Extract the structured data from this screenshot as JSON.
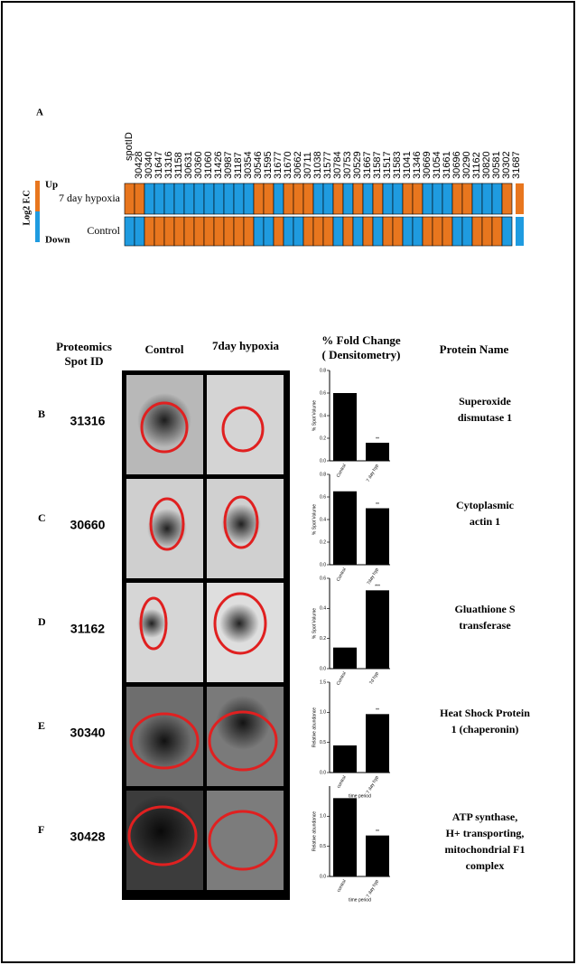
{
  "panel_a": {
    "label": "A",
    "spot_header": "spotID",
    "spot_ids": [
      "30428",
      "30340",
      "31647",
      "31316",
      "31158",
      "30631",
      "30360",
      "31060",
      "31426",
      "30987",
      "31187",
      "30354",
      "30546",
      "31595",
      "31677",
      "31670",
      "30662",
      "30711",
      "31038",
      "31577",
      "30784",
      "30753",
      "30529",
      "31667",
      "31587",
      "31517",
      "31583",
      "31041",
      "31346",
      "30669",
      "31054",
      "31661",
      "30696",
      "30290",
      "31162",
      "30820",
      "30581",
      "30302",
      "31687"
    ],
    "scale_label": "Log2 F.C",
    "levels": [
      {
        "label": "Up",
        "color": "#e8761e"
      },
      {
        "label": "Down",
        "color": "#1f9be0"
      }
    ],
    "rows": [
      {
        "label": "7 day hypoxia",
        "cells": [
          "#e8761e",
          "#e8761e",
          "#1f9be0",
          "#1f9be0",
          "#1f9be0",
          "#1f9be0",
          "#1f9be0",
          "#1f9be0",
          "#1f9be0",
          "#1f9be0",
          "#1f9be0",
          "#1f9be0",
          "#1f9be0",
          "#e8761e",
          "#e8761e",
          "#1f9be0",
          "#e8761e",
          "#e8761e",
          "#e8761e",
          "#1f9be0",
          "#1f9be0",
          "#e8761e",
          "#1f9be0",
          "#e8761e",
          "#1f9be0",
          "#e8761e",
          "#1f9be0",
          "#1f9be0",
          "#e8761e",
          "#e8761e",
          "#1f9be0",
          "#1f9be0",
          "#1f9be0",
          "#e8761e",
          "#e8761e",
          "#1f9be0",
          "#1f9be0",
          "#1f9be0",
          "#e8761e"
        ]
      },
      {
        "label": "Control",
        "cells": [
          "#1f9be0",
          "#1f9be0",
          "#e8761e",
          "#e8761e",
          "#e8761e",
          "#e8761e",
          "#e8761e",
          "#e8761e",
          "#e8761e",
          "#e8761e",
          "#e8761e",
          "#e8761e",
          "#e8761e",
          "#1f9be0",
          "#1f9be0",
          "#e8761e",
          "#1f9be0",
          "#1f9be0",
          "#e8761e",
          "#e8761e",
          "#e8761e",
          "#1f9be0",
          "#e8761e",
          "#1f9be0",
          "#e8761e",
          "#1f9be0",
          "#e8761e",
          "#e8761e",
          "#1f9be0",
          "#1f9be0",
          "#e8761e",
          "#e8761e",
          "#e8761e",
          "#1f9be0",
          "#1f9be0",
          "#e8761e",
          "#e8761e",
          "#e8761e",
          "#1f9be0"
        ]
      }
    ]
  },
  "table": {
    "headers": [
      [
        "Proteomics",
        "Spot ID"
      ],
      [
        "Control"
      ],
      [
        "7day hypoxia"
      ],
      [
        "% Fold Change",
        "( Densitometry)"
      ],
      [
        "Protein  Name"
      ]
    ],
    "rows": [
      {
        "label": "B",
        "spot_id": "31316",
        "protein": [
          "Superoxide",
          "dismutase 1"
        ]
      },
      {
        "label": "C",
        "spot_id": "30660",
        "protein": [
          "Cytoplasmic",
          "actin 1"
        ]
      },
      {
        "label": "D",
        "spot_id": "31162",
        "protein": [
          "Gluathione S",
          "transferase"
        ]
      },
      {
        "label": "E",
        "spot_id": "30340",
        "protein": [
          "Heat Shock Protein",
          "1 (chaperonin)"
        ]
      },
      {
        "label": "F",
        "spot_id": "30428",
        "protein": [
          "ATP synthase,",
          "H+ transporting,",
          "mitochondrial F1",
          "complex"
        ]
      }
    ]
  },
  "chart_data": [
    {
      "type": "bar",
      "ylabel": "% Spot Volume",
      "categories": [
        "Control",
        "7 day hyp"
      ],
      "values": [
        0.6,
        0.16
      ],
      "significance": [
        null,
        "**"
      ],
      "color": "#000000",
      "ylim": [
        0,
        0.8
      ],
      "yticks": [
        {
          "value": 0,
          "label": "0.0"
        },
        0.2,
        0.4,
        0.6,
        0.8
      ]
    },
    {
      "type": "bar",
      "ylabel": "% Spot Volume",
      "categories": [
        "Control",
        "7day hyp"
      ],
      "values": [
        0.65,
        0.5
      ],
      "significance": [
        null,
        "**"
      ],
      "color": "#000000",
      "ylim": [
        0,
        0.8
      ],
      "yticks": [
        {
          "value": 0,
          "label": "0.0"
        },
        0.2,
        0.4,
        0.6,
        0.8
      ]
    },
    {
      "type": "bar",
      "ylabel": "% Spot Volume",
      "categories": [
        "Control",
        "7d hyp"
      ],
      "values": [
        0.14,
        0.52
      ],
      "significance": [
        null,
        "***"
      ],
      "color": "#000000",
      "ylim": [
        0,
        0.6
      ],
      "yticks": [
        {
          "value": 0,
          "label": "0.0"
        },
        0.2,
        0.4,
        0.6
      ]
    },
    {
      "type": "bar",
      "ylabel": "Relative abundance",
      "xlabel": "time period",
      "categories": [
        "control",
        "7 day hyp"
      ],
      "values": [
        0.45,
        0.97
      ],
      "significance": [
        null,
        "**"
      ],
      "color": "#000000",
      "ylim": [
        0,
        1.5
      ],
      "yticks": [
        {
          "value": 0,
          "label": "0.0"
        },
        0.5,
        {
          "value": 1,
          "label": "1.0"
        },
        1.5
      ]
    },
    {
      "type": "bar",
      "ylabel": "Relative abundance",
      "xlabel": "time period",
      "categories": [
        "control",
        "7 day hyp"
      ],
      "values": [
        1.3,
        0.68
      ],
      "significance": [
        null,
        "**"
      ],
      "color": "#000000",
      "ylim": [
        0,
        1.5
      ],
      "yticks": [
        {
          "value": 0,
          "label": "0.0"
        },
        0.5,
        {
          "value": 1,
          "label": "1.0"
        }
      ]
    }
  ]
}
